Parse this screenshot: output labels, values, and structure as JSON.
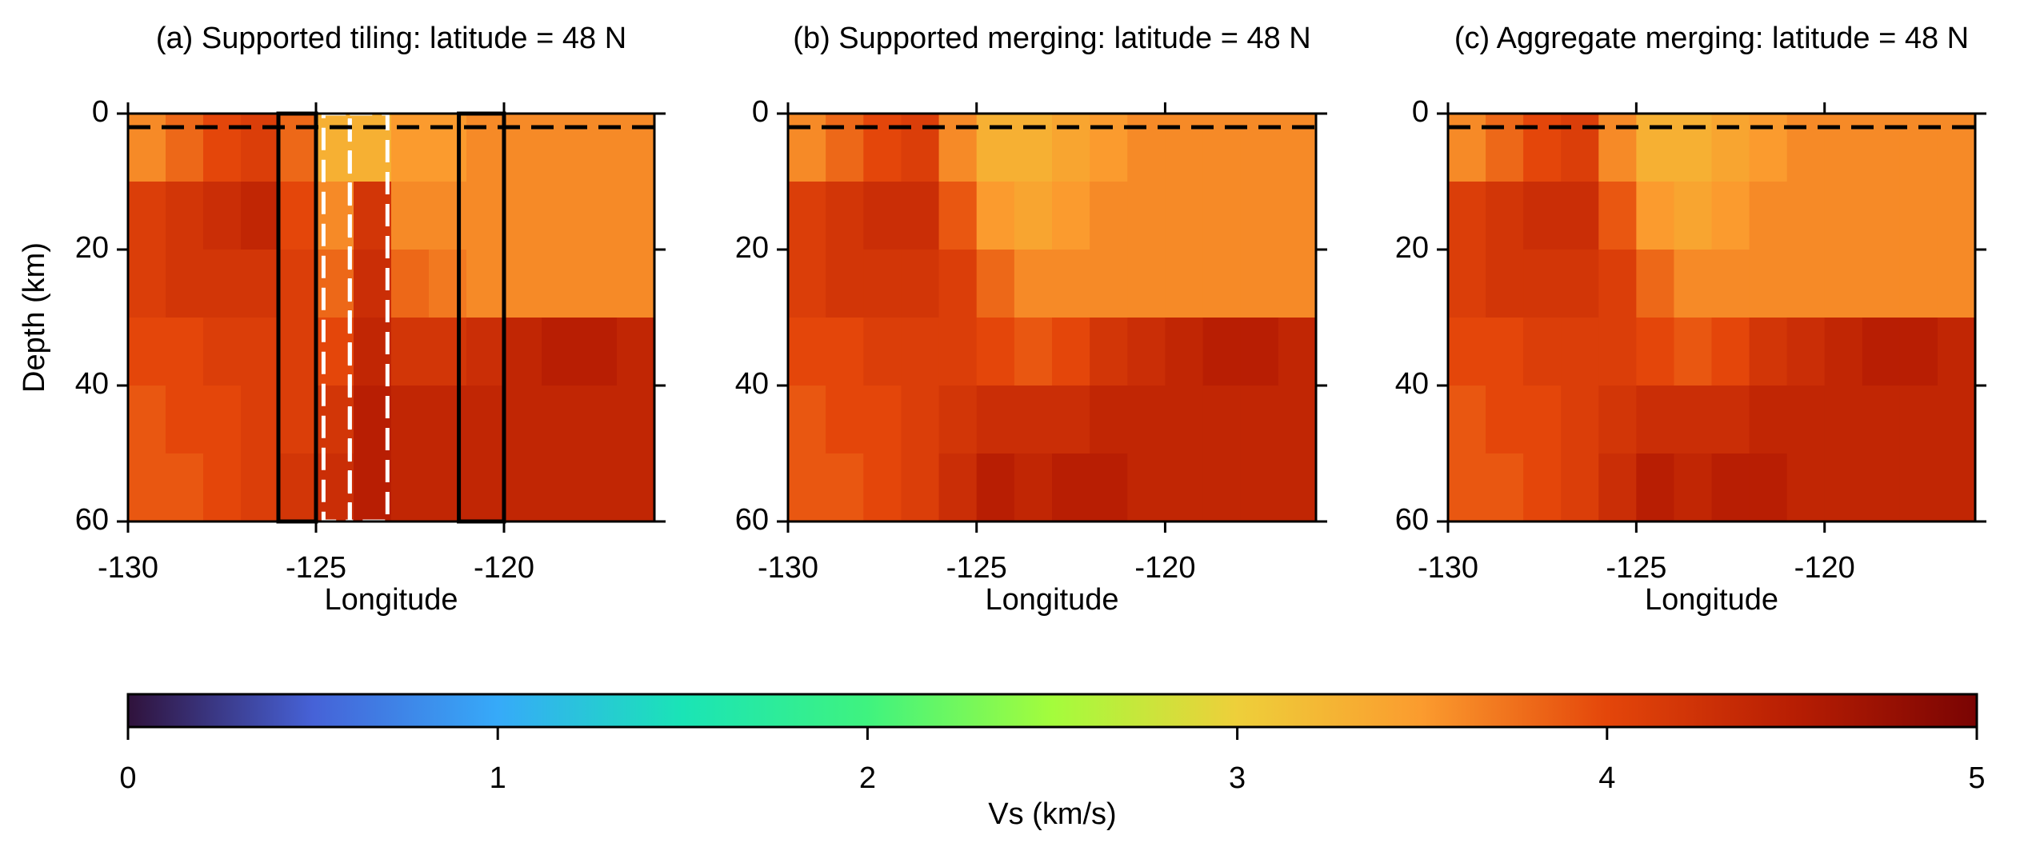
{
  "chart_data": [
    {
      "type": "heatmap",
      "title": "(a) Supported tiling: latitude = 48 N",
      "xlabel": "Longitude",
      "ylabel": "Depth (km)",
      "xbins": [
        -130,
        -129,
        -128,
        -127,
        -126,
        -125,
        -124,
        -123,
        -122,
        -121,
        -120,
        -119,
        -118,
        -117,
        -116
      ],
      "ybins": [
        0,
        10,
        20,
        30,
        40,
        50,
        60
      ],
      "z": [
        [
          3.6,
          3.8,
          4.0,
          4.1,
          3.8,
          3.3,
          3.3,
          3.5,
          3.5,
          3.6,
          3.6,
          3.6,
          3.6,
          3.6
        ],
        [
          4.1,
          4.2,
          4.3,
          4.4,
          4.0,
          3.6,
          4.2,
          3.6,
          3.6,
          3.6,
          3.6,
          3.6,
          3.6,
          3.6
        ],
        [
          4.1,
          4.2,
          4.2,
          4.2,
          4.1,
          3.8,
          4.3,
          3.8,
          3.7,
          3.6,
          3.6,
          3.6,
          3.6,
          3.6
        ],
        [
          4.0,
          4.0,
          4.1,
          4.1,
          4.1,
          4.0,
          4.4,
          4.2,
          4.2,
          4.3,
          4.4,
          4.5,
          4.5,
          4.4
        ],
        [
          3.9,
          4.0,
          4.0,
          4.1,
          4.1,
          4.2,
          4.5,
          4.4,
          4.4,
          4.4,
          4.4,
          4.4,
          4.4,
          4.4
        ],
        [
          3.9,
          3.9,
          4.0,
          4.1,
          4.2,
          4.3,
          4.5,
          4.4,
          4.4,
          4.4,
          4.4,
          4.4,
          4.4,
          4.4
        ]
      ],
      "xlim": [
        -130,
        -116
      ],
      "ylim": [
        60,
        0
      ],
      "xticks": [
        -130,
        -125,
        -120
      ],
      "yticks": [
        0,
        20,
        40,
        60
      ],
      "reference_depth": 2,
      "boxes": [
        {
          "x": [
            -126,
            -125
          ],
          "y": [
            0,
            60
          ],
          "color": "#000000",
          "dashed": false
        },
        {
          "x": [
            -121.2,
            -120
          ],
          "y": [
            0,
            60
          ],
          "color": "#000000",
          "dashed": false
        },
        {
          "x": [
            -124.8,
            -124.1
          ],
          "y": [
            0,
            60
          ],
          "color": "#ffffff",
          "dashed": true
        },
        {
          "x": [
            -124.1,
            -123.1
          ],
          "y": [
            0,
            60
          ],
          "color": "#ffffff",
          "dashed": true
        }
      ]
    },
    {
      "type": "heatmap",
      "title": "(b) Supported merging: latitude = 48 N",
      "xlabel": "Longitude",
      "xbins": [
        -130,
        -129,
        -128,
        -127,
        -126,
        -125,
        -124,
        -123,
        -122,
        -121,
        -120,
        -119,
        -118,
        -117,
        -116
      ],
      "ybins": [
        0,
        10,
        20,
        30,
        40,
        50,
        60
      ],
      "z": [
        [
          3.6,
          3.8,
          4.0,
          4.1,
          3.6,
          3.3,
          3.3,
          3.4,
          3.5,
          3.6,
          3.6,
          3.6,
          3.6,
          3.6
        ],
        [
          4.1,
          4.2,
          4.3,
          4.3,
          3.9,
          3.5,
          3.4,
          3.5,
          3.6,
          3.6,
          3.6,
          3.6,
          3.6,
          3.6
        ],
        [
          4.1,
          4.2,
          4.2,
          4.2,
          4.1,
          3.8,
          3.6,
          3.6,
          3.6,
          3.6,
          3.6,
          3.6,
          3.6,
          3.6
        ],
        [
          4.0,
          4.0,
          4.1,
          4.1,
          4.1,
          4.0,
          3.9,
          4.0,
          4.2,
          4.3,
          4.4,
          4.5,
          4.5,
          4.4
        ],
        [
          3.9,
          4.0,
          4.0,
          4.1,
          4.2,
          4.3,
          4.3,
          4.3,
          4.4,
          4.4,
          4.4,
          4.4,
          4.4,
          4.4
        ],
        [
          3.9,
          3.9,
          4.0,
          4.1,
          4.3,
          4.5,
          4.4,
          4.5,
          4.5,
          4.4,
          4.4,
          4.4,
          4.4,
          4.4
        ]
      ],
      "xlim": [
        -130,
        -116
      ],
      "ylim": [
        60,
        0
      ],
      "xticks": [
        -130,
        -125,
        -120
      ],
      "yticks": [
        0,
        20,
        40,
        60
      ],
      "reference_depth": 2
    },
    {
      "type": "heatmap",
      "title": "(c) Aggregate merging: latitude = 48 N",
      "xlabel": "Longitude",
      "xbins": [
        -130,
        -129,
        -128,
        -127,
        -126,
        -125,
        -124,
        -123,
        -122,
        -121,
        -120,
        -119,
        -118,
        -117,
        -116
      ],
      "ybins": [
        0,
        10,
        20,
        30,
        40,
        50,
        60
      ],
      "z": [
        [
          3.6,
          3.8,
          4.0,
          4.1,
          3.6,
          3.3,
          3.3,
          3.4,
          3.5,
          3.6,
          3.6,
          3.6,
          3.6,
          3.6
        ],
        [
          4.1,
          4.2,
          4.3,
          4.3,
          3.9,
          3.5,
          3.4,
          3.5,
          3.6,
          3.6,
          3.6,
          3.6,
          3.6,
          3.6
        ],
        [
          4.1,
          4.2,
          4.2,
          4.2,
          4.1,
          3.8,
          3.6,
          3.6,
          3.6,
          3.6,
          3.6,
          3.6,
          3.6,
          3.6
        ],
        [
          4.0,
          4.0,
          4.1,
          4.1,
          4.1,
          4.0,
          3.9,
          4.0,
          4.2,
          4.3,
          4.4,
          4.5,
          4.5,
          4.4
        ],
        [
          3.9,
          4.0,
          4.0,
          4.1,
          4.2,
          4.3,
          4.3,
          4.3,
          4.4,
          4.4,
          4.4,
          4.4,
          4.4,
          4.4
        ],
        [
          3.9,
          3.9,
          4.0,
          4.1,
          4.3,
          4.5,
          4.4,
          4.5,
          4.5,
          4.4,
          4.4,
          4.4,
          4.4,
          4.4
        ]
      ],
      "xlim": [
        -130,
        -116
      ],
      "ylim": [
        60,
        0
      ],
      "xticks": [
        -130,
        -125,
        -120
      ],
      "yticks": [
        0,
        20,
        40,
        60
      ],
      "reference_depth": 2
    },
    {
      "type": "colorbar",
      "label": "Vs (km/s)",
      "xlim": [
        0,
        5
      ],
      "xticks": [
        0,
        1,
        2,
        3,
        4,
        5
      ],
      "colormap": [
        {
          "value": 0,
          "color": "#30123b"
        },
        {
          "value": 0.5,
          "color": "#4662d7"
        },
        {
          "value": 1,
          "color": "#36aaf9"
        },
        {
          "value": 1.5,
          "color": "#1ae4b6"
        },
        {
          "value": 2,
          "color": "#3ff37f"
        },
        {
          "value": 2.5,
          "color": "#a4fc3c"
        },
        {
          "value": 3,
          "color": "#eecf3a"
        },
        {
          "value": 3.5,
          "color": "#fb9b2e"
        },
        {
          "value": 4,
          "color": "#e4460a"
        },
        {
          "value": 4.5,
          "color": "#b81e03"
        },
        {
          "value": 5,
          "color": "#7a0403"
        }
      ]
    }
  ]
}
